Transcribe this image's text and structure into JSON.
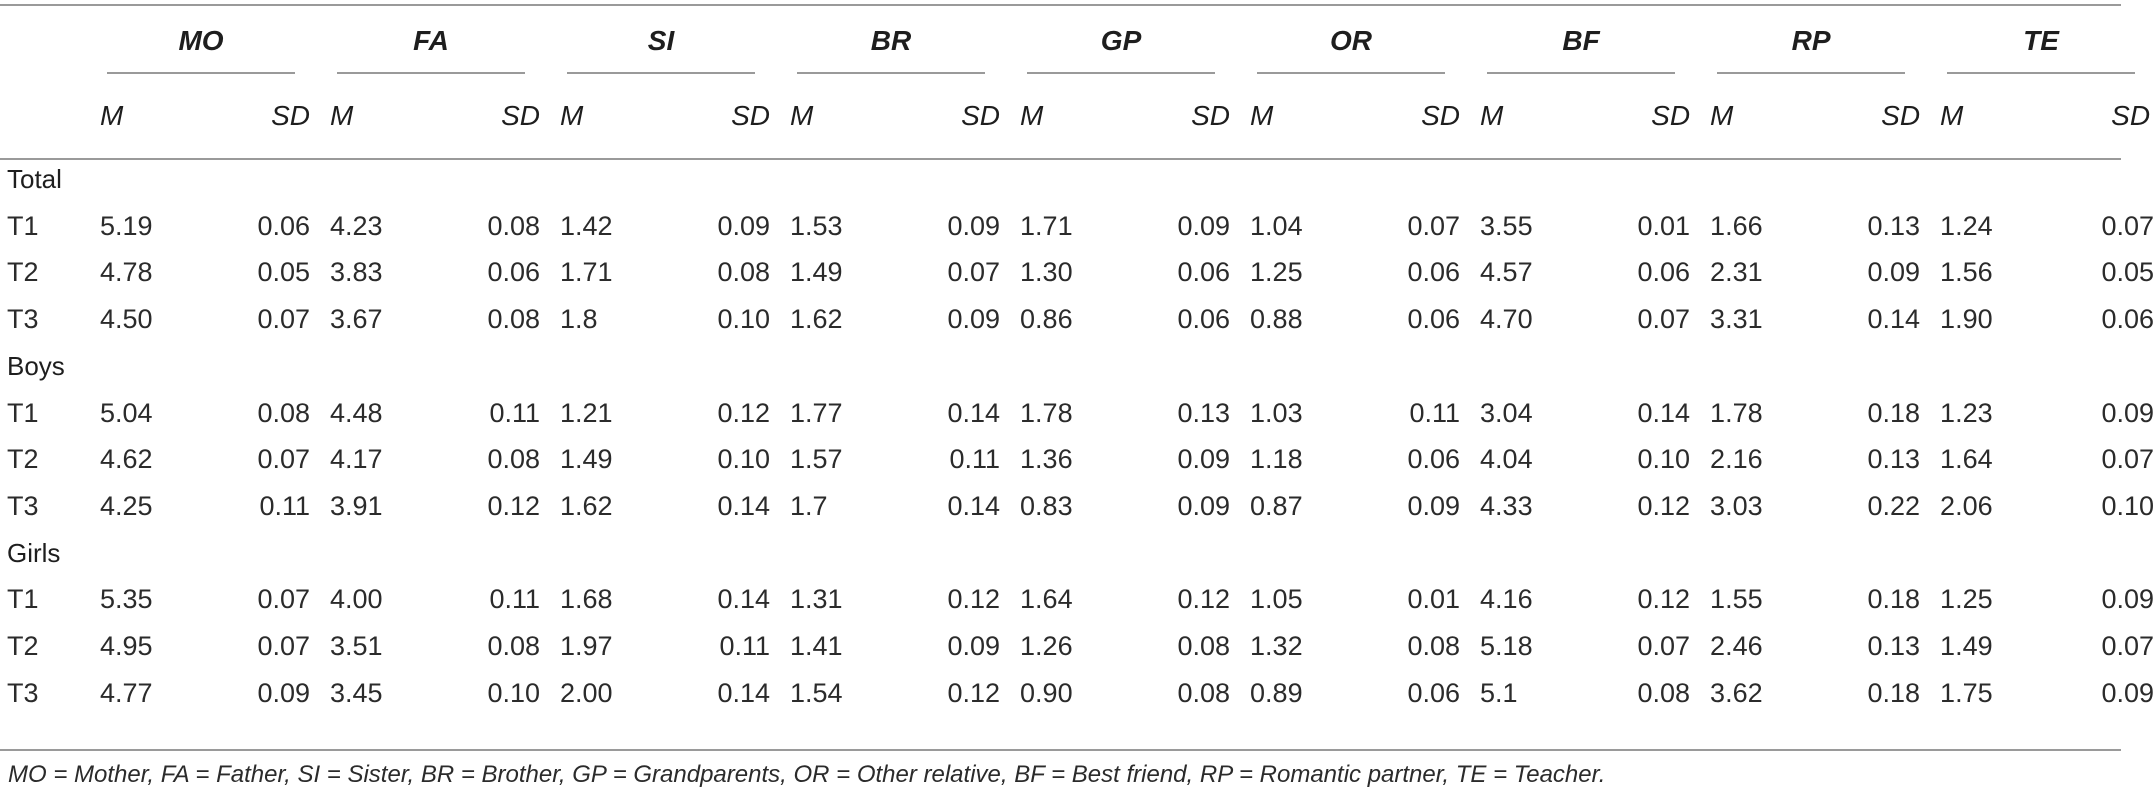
{
  "groups": [
    {
      "abbr": "MO"
    },
    {
      "abbr": "FA"
    },
    {
      "abbr": "SI"
    },
    {
      "abbr": "BR"
    },
    {
      "abbr": "GP"
    },
    {
      "abbr": "OR"
    },
    {
      "abbr": "BF"
    },
    {
      "abbr": "RP"
    },
    {
      "abbr": "TE"
    }
  ],
  "subheaders": {
    "mean": "M",
    "sd": "SD"
  },
  "sections": [
    {
      "label": "Total",
      "rows": [
        {
          "label": "T1",
          "values": [
            "5.19",
            "0.06",
            "4.23",
            "0.08",
            "1.42",
            "0.09",
            "1.53",
            "0.09",
            "1.71",
            "0.09",
            "1.04",
            "0.07",
            "3.55",
            "0.01",
            "1.66",
            "0.13",
            "1.24",
            "0.07"
          ]
        },
        {
          "label": "T2",
          "values": [
            "4.78",
            "0.05",
            "3.83",
            "0.06",
            "1.71",
            "0.08",
            "1.49",
            "0.07",
            "1.30",
            "0.06",
            "1.25",
            "0.06",
            "4.57",
            "0.06",
            "2.31",
            "0.09",
            "1.56",
            "0.05"
          ]
        },
        {
          "label": "T3",
          "values": [
            "4.50",
            "0.07",
            "3.67",
            "0.08",
            "1.8",
            "0.10",
            "1.62",
            "0.09",
            "0.86",
            "0.06",
            "0.88",
            "0.06",
            "4.70",
            "0.07",
            "3.31",
            "0.14",
            "1.90",
            "0.06"
          ]
        }
      ]
    },
    {
      "label": "Boys",
      "rows": [
        {
          "label": "T1",
          "values": [
            "5.04",
            "0.08",
            "4.48",
            "0.11",
            "1.21",
            "0.12",
            "1.77",
            "0.14",
            "1.78",
            "0.13",
            "1.03",
            "0.11",
            "3.04",
            "0.14",
            "1.78",
            "0.18",
            "1.23",
            "0.09"
          ]
        },
        {
          "label": "T2",
          "values": [
            "4.62",
            "0.07",
            "4.17",
            "0.08",
            "1.49",
            "0.10",
            "1.57",
            "0.11",
            "1.36",
            "0.09",
            "1.18",
            "0.06",
            "4.04",
            "0.10",
            "2.16",
            "0.13",
            "1.64",
            "0.07"
          ]
        },
        {
          "label": "T3",
          "values": [
            "4.25",
            "0.11",
            "3.91",
            "0.12",
            "1.62",
            "0.14",
            "1.7",
            "0.14",
            "0.83",
            "0.09",
            "0.87",
            "0.09",
            "4.33",
            "0.12",
            "3.03",
            "0.22",
            "2.06",
            "0.10"
          ]
        }
      ]
    },
    {
      "label": "Girls",
      "rows": [
        {
          "label": "T1",
          "values": [
            "5.35",
            "0.07",
            "4.00",
            "0.11",
            "1.68",
            "0.14",
            "1.31",
            "0.12",
            "1.64",
            "0.12",
            "1.05",
            "0.01",
            "4.16",
            "0.12",
            "1.55",
            "0.18",
            "1.25",
            "0.09"
          ]
        },
        {
          "label": "T2",
          "values": [
            "4.95",
            "0.07",
            "3.51",
            "0.08",
            "1.97",
            "0.11",
            "1.41",
            "0.09",
            "1.26",
            "0.08",
            "1.32",
            "0.08",
            "5.18",
            "0.07",
            "2.46",
            "0.13",
            "1.49",
            "0.07"
          ]
        },
        {
          "label": "T3",
          "values": [
            "4.77",
            "0.09",
            "3.45",
            "0.10",
            "2.00",
            "0.14",
            "1.54",
            "0.12",
            "0.90",
            "0.08",
            "0.89",
            "0.06",
            "5.1",
            "0.08",
            "3.62",
            "0.18",
            "1.75",
            "0.09"
          ]
        }
      ]
    }
  ],
  "footnote": "MO = Mother, FA = Father, SI = Sister, BR = Brother, GP = Grandparents, OR = Other relative, BF = Best friend, RP = Romantic partner, TE = Teacher.",
  "colors": {
    "rule": "#9a9a9a",
    "text": "#222222",
    "background": "#ffffff"
  }
}
